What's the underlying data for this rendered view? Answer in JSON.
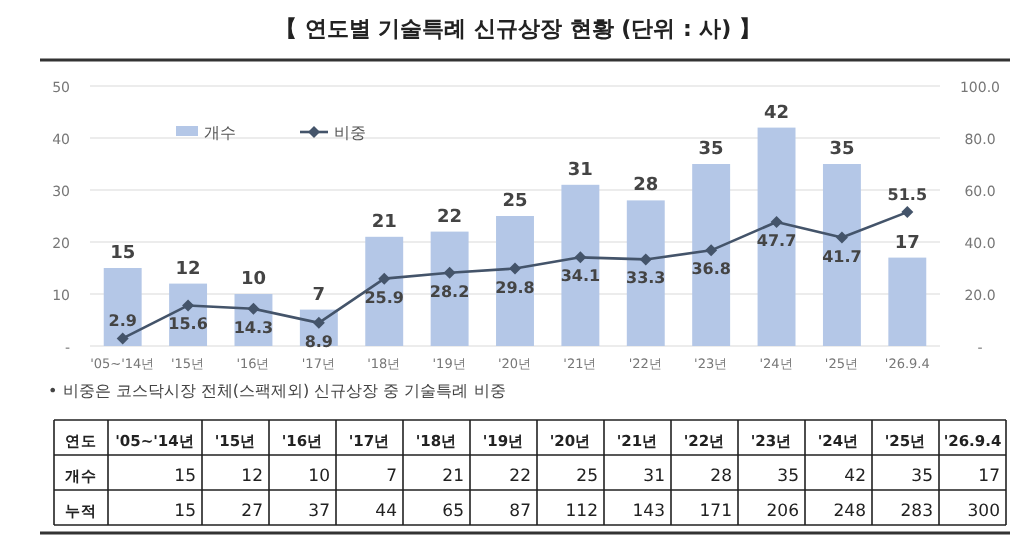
{
  "chart_data": [
    {
      "type": "bar",
      "title": "【 연도별 기술특례 신규상장 현황 (단위 : 사) 】",
      "categories": [
        "'05~'14년",
        "'15년",
        "'16년",
        "'17년",
        "'18년",
        "'19년",
        "'20년",
        "'21년",
        "'22년",
        "'23년",
        "'24년",
        "'25년",
        "'26.9.4"
      ],
      "series": [
        {
          "name": "개수",
          "type": "bar",
          "color": "#b4c7e7",
          "values": [
            15,
            12,
            10,
            7,
            21,
            22,
            25,
            31,
            28,
            35,
            42,
            35,
            17
          ]
        },
        {
          "name": "비중",
          "type": "line",
          "axis": "y2",
          "color": "#44546a",
          "marker": "diamond",
          "values": [
            2.9,
            15.6,
            14.3,
            8.9,
            25.9,
            28.2,
            29.8,
            34.1,
            33.3,
            36.8,
            47.7,
            41.7,
            51.5
          ]
        }
      ],
      "ylim": [
        0,
        50
      ],
      "yticks": [
        {
          "value": 0,
          "label": "-"
        },
        10,
        20,
        30,
        40,
        50
      ],
      "y2lim": [
        0,
        100
      ],
      "y2ticks": [
        {
          "value": 0,
          "label": "-"
        },
        {
          "value": 20,
          "label": "20.0"
        },
        {
          "value": 40,
          "label": "40.0"
        },
        {
          "value": 60,
          "label": "60.0"
        },
        {
          "value": 80,
          "label": "80.0"
        },
        {
          "value": 100,
          "label": "100.0"
        }
      ],
      "grid": "y",
      "legend": "top left",
      "data_labels": true,
      "annotations": [
        "• 비중은 코스닥시장 전체(스팩제외) 신규상장 중 기술특례 비중"
      ]
    },
    {
      "type": "heatmap",
      "xlabel": "연도",
      "categories": [
        "'05~'14년",
        "'15년",
        "'16년",
        "'17년",
        "'18년",
        "'19년",
        "'20년",
        "'21년",
        "'22년",
        "'23년",
        "'24년",
        "'25년",
        "'26.9.4"
      ],
      "y_categories": [
        "개수",
        "누적"
      ],
      "cells": [
        [
          15,
          12,
          10,
          7,
          21,
          22,
          25,
          31,
          28,
          35,
          42,
          35,
          17
        ],
        [
          15,
          27,
          37,
          44,
          65,
          87,
          112,
          143,
          171,
          206,
          248,
          283,
          300
        ]
      ],
      "data_labels": true
    }
  ]
}
